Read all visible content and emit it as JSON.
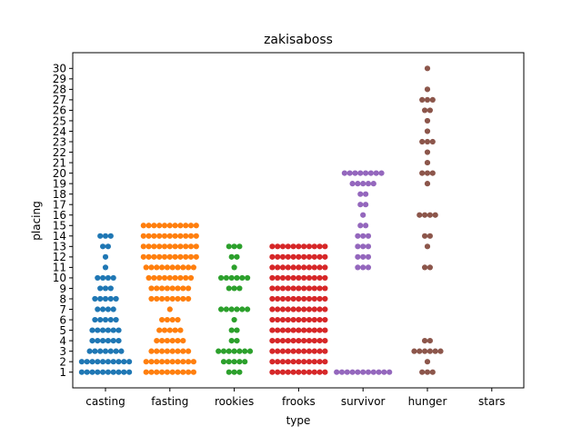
{
  "chart_data": {
    "type": "swarm",
    "title": "zakisaboss",
    "xlabel": "type",
    "ylabel": "placing",
    "categories": [
      "casting",
      "fasting",
      "rookies",
      "frooks",
      "survivor",
      "hunger",
      "stars"
    ],
    "yticks": [
      1,
      2,
      3,
      4,
      5,
      6,
      7,
      8,
      9,
      10,
      11,
      12,
      13,
      14,
      15,
      16,
      17,
      18,
      19,
      20,
      21,
      22,
      23,
      24,
      25,
      26,
      27,
      28,
      29,
      30
    ],
    "ylim": [
      -0.5,
      31.5
    ],
    "grid": false,
    "colors": [
      "#1f77b4",
      "#ff7f0e",
      "#2ca02c",
      "#d62728",
      "#9467bd",
      "#8c564b",
      "#e377c2"
    ],
    "series": [
      {
        "category": "casting",
        "counts": {
          "1": 10,
          "2": 10,
          "3": 7,
          "4": 6,
          "5": 6,
          "6": 5,
          "7": 4,
          "8": 5,
          "9": 3,
          "10": 4,
          "11": 1,
          "12": 1,
          "13": 2,
          "14": 3
        }
      },
      {
        "category": "fasting",
        "counts": {
          "1": 10,
          "2": 10,
          "3": 8,
          "4": 6,
          "5": 5,
          "6": 4,
          "7": 1,
          "8": 8,
          "9": 8,
          "10": 9,
          "11": 10,
          "12": 11,
          "13": 11,
          "14": 11,
          "15": 11
        }
      },
      {
        "category": "rookies",
        "counts": {
          "1": 3,
          "2": 5,
          "3": 7,
          "4": 2,
          "5": 2,
          "6": 1,
          "7": 6,
          "8": 0,
          "9": 3,
          "10": 6,
          "11": 1,
          "12": 2,
          "13": 3
        }
      },
      {
        "category": "frooks",
        "counts": {
          "1": 11,
          "2": 11,
          "3": 11,
          "4": 11,
          "5": 11,
          "6": 11,
          "7": 11,
          "8": 11,
          "9": 11,
          "10": 11,
          "11": 11,
          "12": 11,
          "13": 11
        }
      },
      {
        "category": "survivor",
        "counts": {
          "1": 11,
          "11": 3,
          "12": 3,
          "13": 3,
          "14": 3,
          "15": 2,
          "16": 1,
          "17": 2,
          "18": 2,
          "19": 5,
          "20": 8
        }
      },
      {
        "category": "hunger",
        "counts": {
          "1": 3,
          "2": 1,
          "3": 6,
          "4": 2,
          "11": 2,
          "13": 1,
          "14": 2,
          "16": 4,
          "19": 1,
          "20": 3,
          "21": 1,
          "22": 1,
          "23": 3,
          "24": 1,
          "25": 1,
          "26": 2,
          "27": 3,
          "28": 1,
          "30": 1
        }
      },
      {
        "category": "stars",
        "counts": {}
      }
    ]
  }
}
